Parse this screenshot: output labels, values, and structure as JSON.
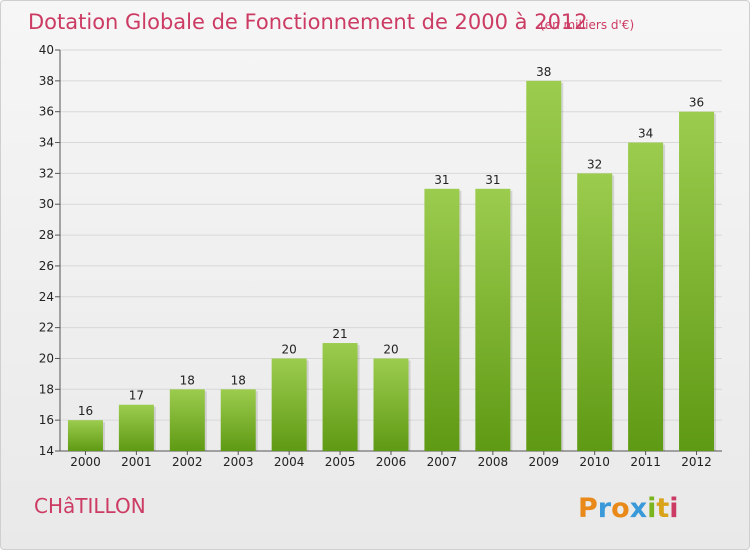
{
  "title": "Dotation Globale de Fonctionnement de 2000 à 2012",
  "unit_note": "(en milliers d'€)",
  "commune": "CHâTILLON",
  "brand": {
    "letters": [
      "P",
      "r",
      "o",
      "x",
      "i",
      "t",
      "i"
    ],
    "colors": [
      "#e8891a",
      "#3a9ad9",
      "#e8891a",
      "#3a9ad9",
      "#7ab51d",
      "#d9a31a",
      "#cc3b63"
    ]
  },
  "colors": {
    "title": "#cc3b63",
    "bar_top": "#9ccc4e",
    "bar_bottom": "#5f9a14",
    "grid": "#d8d8d8"
  },
  "chart_data": {
    "type": "bar",
    "categories": [
      "2000",
      "2001",
      "2002",
      "2003",
      "2004",
      "2005",
      "2006",
      "2007",
      "2008",
      "2009",
      "2010",
      "2011",
      "2012"
    ],
    "values": [
      16,
      17,
      18,
      18,
      20,
      21,
      20,
      31,
      31,
      38,
      32,
      34,
      36
    ],
    "ylim": [
      14,
      40
    ],
    "yticks": [
      14,
      16,
      18,
      20,
      22,
      24,
      26,
      28,
      30,
      32,
      34,
      36,
      38,
      40
    ],
    "grid": "horizontal",
    "xlabel": "",
    "ylabel": ""
  }
}
